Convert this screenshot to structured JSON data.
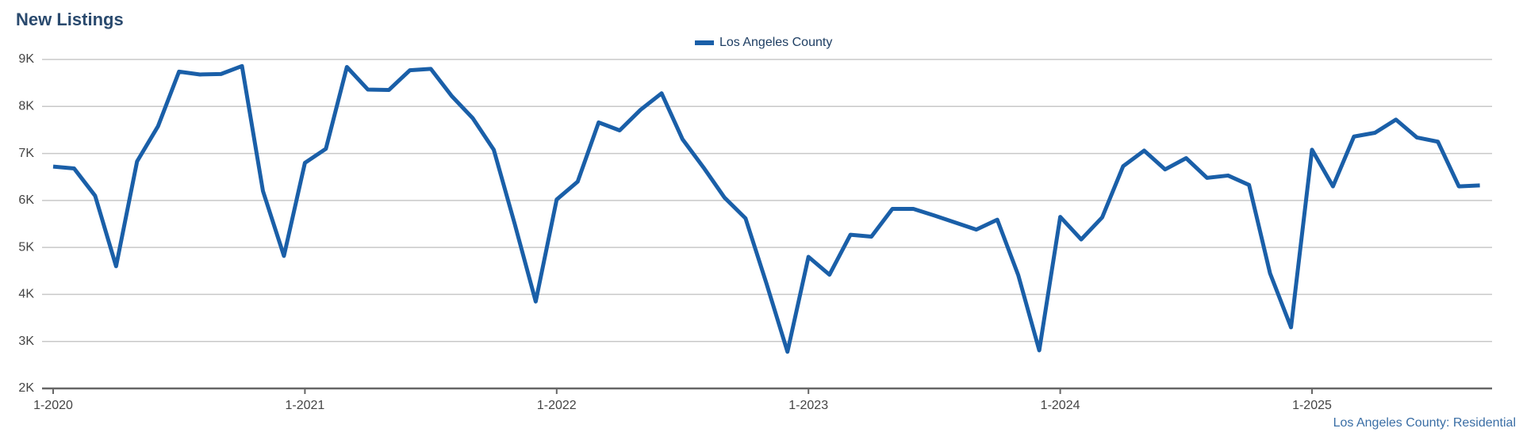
{
  "chart_data": {
    "type": "line",
    "title": "New Listings",
    "caption": "Los Angeles County: Residential",
    "categories": [
      "1-2020",
      null,
      null,
      null,
      null,
      null,
      null,
      null,
      null,
      null,
      null,
      null,
      "1-2021",
      null,
      null,
      null,
      null,
      null,
      null,
      null,
      null,
      null,
      null,
      null,
      "1-2022",
      null,
      null,
      null,
      null,
      null,
      null,
      null,
      null,
      null,
      null,
      null,
      "1-2023",
      null,
      null,
      null,
      null,
      null,
      null,
      null,
      null,
      null,
      null,
      null,
      "1-2024",
      null,
      null,
      null,
      null,
      null,
      null,
      null,
      null,
      null,
      null,
      null,
      "1-2025",
      null,
      null,
      null,
      null,
      null,
      null,
      null,
      null
    ],
    "series": [
      {
        "name": "Los Angeles County",
        "color": "#1a5fa8",
        "values": [
          6720,
          6680,
          6100,
          4600,
          6830,
          7580,
          8740,
          8680,
          8690,
          8860,
          6200,
          4820,
          6800,
          7100,
          8840,
          8360,
          8350,
          8770,
          8800,
          8220,
          7750,
          7080,
          5500,
          3850,
          6020,
          6400,
          7660,
          7490,
          7930,
          8280,
          7300,
          6700,
          6060,
          5620,
          4230,
          2780,
          4800,
          4420,
          5270,
          5230,
          5820,
          5820,
          5680,
          5530,
          5380,
          5590,
          4410,
          2810,
          5650,
          5170,
          5640,
          6730,
          7060,
          6660,
          6900,
          6480,
          6530,
          6330,
          4450,
          3300,
          7080,
          6300,
          7360,
          7440,
          7720,
          7340,
          7250,
          6300,
          6320
        ]
      }
    ],
    "ylim": [
      2000,
      9000
    ],
    "yticks": [
      {
        "value": 2000,
        "label": "2K"
      },
      {
        "value": 3000,
        "label": "3K"
      },
      {
        "value": 4000,
        "label": "4K"
      },
      {
        "value": 5000,
        "label": "5K"
      },
      {
        "value": 6000,
        "label": "6K"
      },
      {
        "value": 7000,
        "label": "7K"
      },
      {
        "value": 8000,
        "label": "8K"
      },
      {
        "value": 9000,
        "label": "9K"
      }
    ],
    "grid": true,
    "legend": "top"
  }
}
